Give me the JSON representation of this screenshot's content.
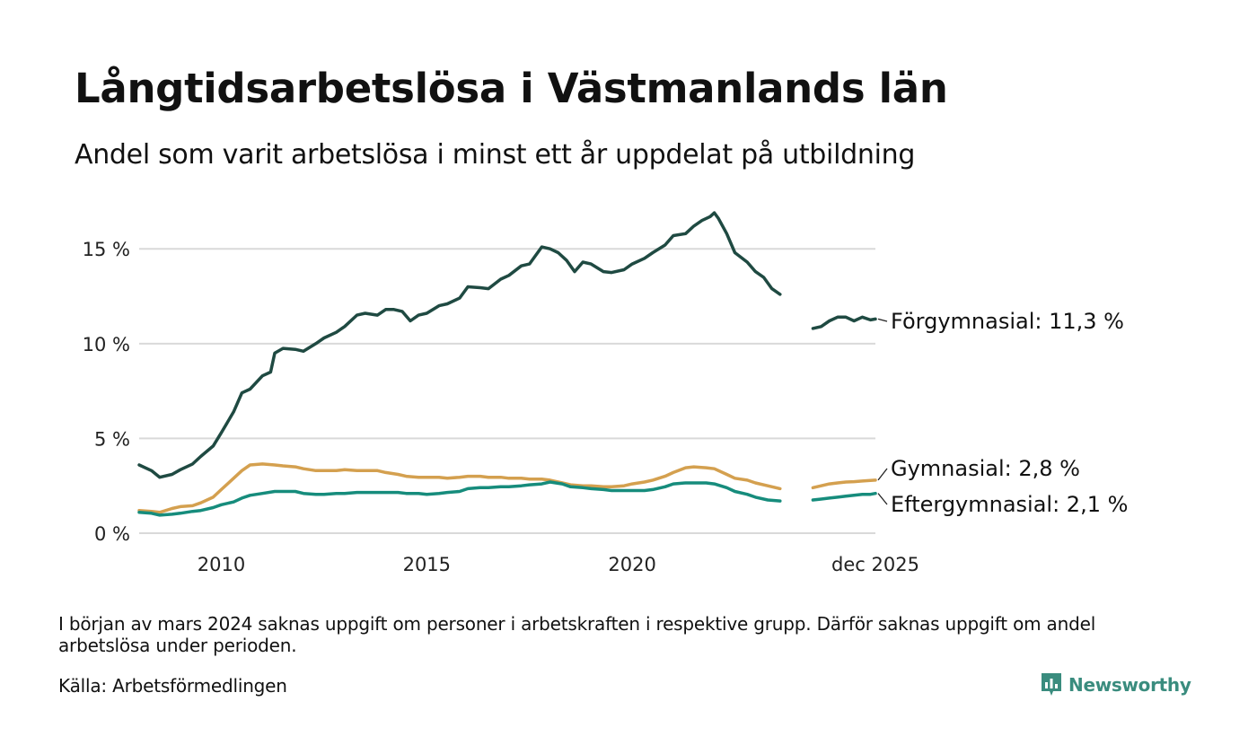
{
  "header": {
    "title": "Långtidsarbetslösa i Västmanlands län",
    "subtitle": "Andel som varit arbetslösa i minst ett år uppdelat på utbildning"
  },
  "footer": {
    "note": "I början av mars 2024 saknas uppgift om personer i arbetskraften i respektive grupp. Därför saknas uppgift om andel arbetslösa under perioden.",
    "source": "Källa: Arbetsförmedlingen",
    "brand": "Newsworthy"
  },
  "colors": {
    "forgymnasial": "#1f4a42",
    "gymnasial": "#d4a04f",
    "eftergymnasial": "#168c7c",
    "grid": "#d9d9d9",
    "brand": "#3a8c7e"
  },
  "chart_data": {
    "type": "line",
    "title": "Långtidsarbetslösa i Västmanlands län",
    "xlabel": "",
    "ylabel": "",
    "ylim": [
      0,
      17
    ],
    "xlim": [
      2008.0,
      2025.92
    ],
    "yticks": [
      {
        "value": 0,
        "label": "0 %"
      },
      {
        "value": 5,
        "label": "5 %"
      },
      {
        "value": 10,
        "label": "10 %"
      },
      {
        "value": 15,
        "label": "15 %"
      }
    ],
    "xticks": [
      {
        "value": 2010,
        "label": "2010"
      },
      {
        "value": 2015,
        "label": "2015"
      },
      {
        "value": 2020,
        "label": "2020"
      },
      {
        "value": 2025.92,
        "label": "dec 2025"
      }
    ],
    "grid": true,
    "gap": [
      2023.6,
      2024.4
    ],
    "series": [
      {
        "name": "Förgymnasial",
        "label": "Förgymnasial: 11,3 %",
        "points": [
          [
            2008.0,
            3.6
          ],
          [
            2008.3,
            3.3
          ],
          [
            2008.5,
            2.95
          ],
          [
            2008.8,
            3.1
          ],
          [
            2009.0,
            3.35
          ],
          [
            2009.3,
            3.65
          ],
          [
            2009.5,
            4.05
          ],
          [
            2009.8,
            4.6
          ],
          [
            2010.0,
            5.3
          ],
          [
            2010.3,
            6.4
          ],
          [
            2010.5,
            7.4
          ],
          [
            2010.7,
            7.6
          ],
          [
            2011.0,
            8.3
          ],
          [
            2011.2,
            8.5
          ],
          [
            2011.3,
            9.5
          ],
          [
            2011.5,
            9.75
          ],
          [
            2011.8,
            9.7
          ],
          [
            2012.0,
            9.6
          ],
          [
            2012.3,
            10.0
          ],
          [
            2012.5,
            10.3
          ],
          [
            2012.8,
            10.6
          ],
          [
            2013.0,
            10.9
          ],
          [
            2013.3,
            11.5
          ],
          [
            2013.5,
            11.6
          ],
          [
            2013.8,
            11.5
          ],
          [
            2014.0,
            11.8
          ],
          [
            2014.2,
            11.8
          ],
          [
            2014.4,
            11.7
          ],
          [
            2014.6,
            11.2
          ],
          [
            2014.8,
            11.5
          ],
          [
            2015.0,
            11.6
          ],
          [
            2015.3,
            12.0
          ],
          [
            2015.5,
            12.1
          ],
          [
            2015.8,
            12.4
          ],
          [
            2016.0,
            13.0
          ],
          [
            2016.3,
            12.95
          ],
          [
            2016.5,
            12.9
          ],
          [
            2016.8,
            13.4
          ],
          [
            2017.0,
            13.6
          ],
          [
            2017.3,
            14.1
          ],
          [
            2017.5,
            14.2
          ],
          [
            2017.8,
            15.1
          ],
          [
            2018.0,
            15.0
          ],
          [
            2018.2,
            14.8
          ],
          [
            2018.4,
            14.4
          ],
          [
            2018.6,
            13.8
          ],
          [
            2018.8,
            14.3
          ],
          [
            2019.0,
            14.2
          ],
          [
            2019.3,
            13.8
          ],
          [
            2019.5,
            13.75
          ],
          [
            2019.8,
            13.9
          ],
          [
            2020.0,
            14.2
          ],
          [
            2020.3,
            14.5
          ],
          [
            2020.5,
            14.8
          ],
          [
            2020.8,
            15.2
          ],
          [
            2021.0,
            15.7
          ],
          [
            2021.3,
            15.8
          ],
          [
            2021.5,
            16.2
          ],
          [
            2021.7,
            16.5
          ],
          [
            2021.9,
            16.7
          ],
          [
            2022.0,
            16.9
          ],
          [
            2022.1,
            16.6
          ],
          [
            2022.3,
            15.8
          ],
          [
            2022.5,
            14.8
          ],
          [
            2022.8,
            14.3
          ],
          [
            2023.0,
            13.8
          ],
          [
            2023.2,
            13.5
          ],
          [
            2023.4,
            12.9
          ],
          [
            2023.6,
            12.6
          ],
          null,
          [
            2024.4,
            10.8
          ],
          [
            2024.6,
            10.9
          ],
          [
            2024.8,
            11.2
          ],
          [
            2025.0,
            11.4
          ],
          [
            2025.2,
            11.4
          ],
          [
            2025.4,
            11.2
          ],
          [
            2025.6,
            11.4
          ],
          [
            2025.8,
            11.25
          ],
          [
            2025.92,
            11.3
          ]
        ]
      },
      {
        "name": "Gymnasial",
        "label": "Gymnasial:  2,8 %",
        "points": [
          [
            2008.0,
            1.2
          ],
          [
            2008.3,
            1.15
          ],
          [
            2008.5,
            1.1
          ],
          [
            2008.8,
            1.3
          ],
          [
            2009.0,
            1.4
          ],
          [
            2009.3,
            1.45
          ],
          [
            2009.5,
            1.6
          ],
          [
            2009.8,
            1.9
          ],
          [
            2010.0,
            2.3
          ],
          [
            2010.3,
            2.9
          ],
          [
            2010.5,
            3.3
          ],
          [
            2010.7,
            3.6
          ],
          [
            2011.0,
            3.65
          ],
          [
            2011.3,
            3.6
          ],
          [
            2011.5,
            3.55
          ],
          [
            2011.8,
            3.5
          ],
          [
            2012.0,
            3.4
          ],
          [
            2012.3,
            3.3
          ],
          [
            2012.5,
            3.3
          ],
          [
            2012.8,
            3.3
          ],
          [
            2013.0,
            3.35
          ],
          [
            2013.3,
            3.3
          ],
          [
            2013.5,
            3.3
          ],
          [
            2013.8,
            3.3
          ],
          [
            2014.0,
            3.2
          ],
          [
            2014.3,
            3.1
          ],
          [
            2014.5,
            3.0
          ],
          [
            2014.8,
            2.95
          ],
          [
            2015.0,
            2.95
          ],
          [
            2015.3,
            2.95
          ],
          [
            2015.5,
            2.9
          ],
          [
            2015.8,
            2.95
          ],
          [
            2016.0,
            3.0
          ],
          [
            2016.3,
            3.0
          ],
          [
            2016.5,
            2.95
          ],
          [
            2016.8,
            2.95
          ],
          [
            2017.0,
            2.9
          ],
          [
            2017.3,
            2.9
          ],
          [
            2017.5,
            2.85
          ],
          [
            2017.8,
            2.85
          ],
          [
            2018.0,
            2.8
          ],
          [
            2018.3,
            2.65
          ],
          [
            2018.5,
            2.55
          ],
          [
            2018.8,
            2.5
          ],
          [
            2019.0,
            2.5
          ],
          [
            2019.3,
            2.45
          ],
          [
            2019.5,
            2.45
          ],
          [
            2019.8,
            2.5
          ],
          [
            2020.0,
            2.6
          ],
          [
            2020.3,
            2.7
          ],
          [
            2020.5,
            2.8
          ],
          [
            2020.8,
            3.0
          ],
          [
            2021.0,
            3.2
          ],
          [
            2021.3,
            3.45
          ],
          [
            2021.5,
            3.5
          ],
          [
            2021.8,
            3.45
          ],
          [
            2022.0,
            3.4
          ],
          [
            2022.3,
            3.1
          ],
          [
            2022.5,
            2.9
          ],
          [
            2022.8,
            2.8
          ],
          [
            2023.0,
            2.65
          ],
          [
            2023.3,
            2.5
          ],
          [
            2023.6,
            2.35
          ],
          null,
          [
            2024.4,
            2.4
          ],
          [
            2024.6,
            2.5
          ],
          [
            2024.8,
            2.6
          ],
          [
            2025.0,
            2.65
          ],
          [
            2025.2,
            2.7
          ],
          [
            2025.4,
            2.72
          ],
          [
            2025.6,
            2.75
          ],
          [
            2025.8,
            2.78
          ],
          [
            2025.92,
            2.8
          ]
        ]
      },
      {
        "name": "Eftergymnasial",
        "label": "Eftergymnasial:  2,1 %",
        "points": [
          [
            2008.0,
            1.1
          ],
          [
            2008.3,
            1.05
          ],
          [
            2008.5,
            0.95
          ],
          [
            2008.8,
            1.0
          ],
          [
            2009.0,
            1.05
          ],
          [
            2009.3,
            1.15
          ],
          [
            2009.5,
            1.2
          ],
          [
            2009.8,
            1.35
          ],
          [
            2010.0,
            1.5
          ],
          [
            2010.3,
            1.65
          ],
          [
            2010.5,
            1.85
          ],
          [
            2010.7,
            2.0
          ],
          [
            2011.0,
            2.1
          ],
          [
            2011.3,
            2.2
          ],
          [
            2011.5,
            2.2
          ],
          [
            2011.8,
            2.2
          ],
          [
            2012.0,
            2.1
          ],
          [
            2012.3,
            2.05
          ],
          [
            2012.5,
            2.05
          ],
          [
            2012.8,
            2.1
          ],
          [
            2013.0,
            2.1
          ],
          [
            2013.3,
            2.15
          ],
          [
            2013.5,
            2.15
          ],
          [
            2013.8,
            2.15
          ],
          [
            2014.0,
            2.15
          ],
          [
            2014.3,
            2.15
          ],
          [
            2014.5,
            2.1
          ],
          [
            2014.8,
            2.1
          ],
          [
            2015.0,
            2.05
          ],
          [
            2015.3,
            2.1
          ],
          [
            2015.5,
            2.15
          ],
          [
            2015.8,
            2.2
          ],
          [
            2016.0,
            2.35
          ],
          [
            2016.3,
            2.4
          ],
          [
            2016.5,
            2.4
          ],
          [
            2016.8,
            2.45
          ],
          [
            2017.0,
            2.45
          ],
          [
            2017.3,
            2.5
          ],
          [
            2017.5,
            2.55
          ],
          [
            2017.8,
            2.6
          ],
          [
            2018.0,
            2.7
          ],
          [
            2018.3,
            2.6
          ],
          [
            2018.5,
            2.45
          ],
          [
            2018.8,
            2.4
          ],
          [
            2019.0,
            2.35
          ],
          [
            2019.3,
            2.3
          ],
          [
            2019.5,
            2.25
          ],
          [
            2019.8,
            2.25
          ],
          [
            2020.0,
            2.25
          ],
          [
            2020.3,
            2.25
          ],
          [
            2020.5,
            2.3
          ],
          [
            2020.8,
            2.45
          ],
          [
            2021.0,
            2.6
          ],
          [
            2021.3,
            2.65
          ],
          [
            2021.5,
            2.65
          ],
          [
            2021.8,
            2.65
          ],
          [
            2022.0,
            2.6
          ],
          [
            2022.3,
            2.4
          ],
          [
            2022.5,
            2.2
          ],
          [
            2022.8,
            2.05
          ],
          [
            2023.0,
            1.9
          ],
          [
            2023.3,
            1.75
          ],
          [
            2023.6,
            1.7
          ],
          null,
          [
            2024.4,
            1.75
          ],
          [
            2024.6,
            1.8
          ],
          [
            2024.8,
            1.85
          ],
          [
            2025.0,
            1.9
          ],
          [
            2025.2,
            1.95
          ],
          [
            2025.4,
            2.0
          ],
          [
            2025.6,
            2.05
          ],
          [
            2025.8,
            2.05
          ],
          [
            2025.92,
            2.1
          ]
        ]
      }
    ]
  }
}
